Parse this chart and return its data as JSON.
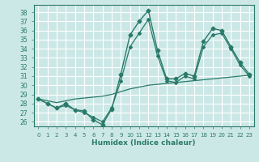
{
  "title": "",
  "xlabel": "Humidex (Indice chaleur)",
  "background_color": "#cce8e6",
  "grid_color": "#ffffff",
  "line_color": "#2a7a6a",
  "xlim": [
    -0.5,
    23.5
  ],
  "ylim": [
    25.5,
    38.8
  ],
  "xticks": [
    0,
    1,
    2,
    3,
    4,
    5,
    6,
    7,
    8,
    9,
    10,
    11,
    12,
    13,
    14,
    15,
    16,
    17,
    18,
    19,
    20,
    21,
    22,
    23
  ],
  "yticks": [
    26,
    27,
    28,
    29,
    30,
    31,
    32,
    33,
    34,
    35,
    36,
    37,
    38
  ],
  "line1_x": [
    0,
    1,
    2,
    3,
    4,
    5,
    6,
    7,
    8,
    9,
    10,
    11,
    12,
    13,
    14,
    15,
    16,
    17,
    18,
    19,
    20,
    21,
    22,
    23
  ],
  "line1_y": [
    28.5,
    28.0,
    27.5,
    28.0,
    27.3,
    27.2,
    26.2,
    25.7,
    27.4,
    31.2,
    35.5,
    37.0,
    38.2,
    33.8,
    30.7,
    30.7,
    31.3,
    31.0,
    34.8,
    36.2,
    36.0,
    34.2,
    32.5,
    31.2
  ],
  "line2_x": [
    0,
    1,
    2,
    3,
    4,
    5,
    6,
    7,
    8,
    9,
    10,
    11,
    12,
    13,
    14,
    15,
    16,
    17,
    18,
    19,
    20,
    21,
    22,
    23
  ],
  "line2_y": [
    28.5,
    28.3,
    28.1,
    28.3,
    28.5,
    28.6,
    28.7,
    28.8,
    29.0,
    29.3,
    29.6,
    29.8,
    30.0,
    30.1,
    30.2,
    30.3,
    30.4,
    30.5,
    30.6,
    30.7,
    30.8,
    30.9,
    31.0,
    31.1
  ],
  "line3_x": [
    0,
    1,
    2,
    3,
    4,
    5,
    6,
    7,
    8,
    9,
    10,
    11,
    12,
    13,
    14,
    15,
    16,
    17,
    18,
    19,
    20,
    21,
    22,
    23
  ],
  "line3_y": [
    28.5,
    28.0,
    27.5,
    27.8,
    27.3,
    27.0,
    26.5,
    26.0,
    27.5,
    30.5,
    34.2,
    35.7,
    37.2,
    33.2,
    30.5,
    30.3,
    31.0,
    30.7,
    34.2,
    35.5,
    35.7,
    34.0,
    32.2,
    31.0
  ]
}
